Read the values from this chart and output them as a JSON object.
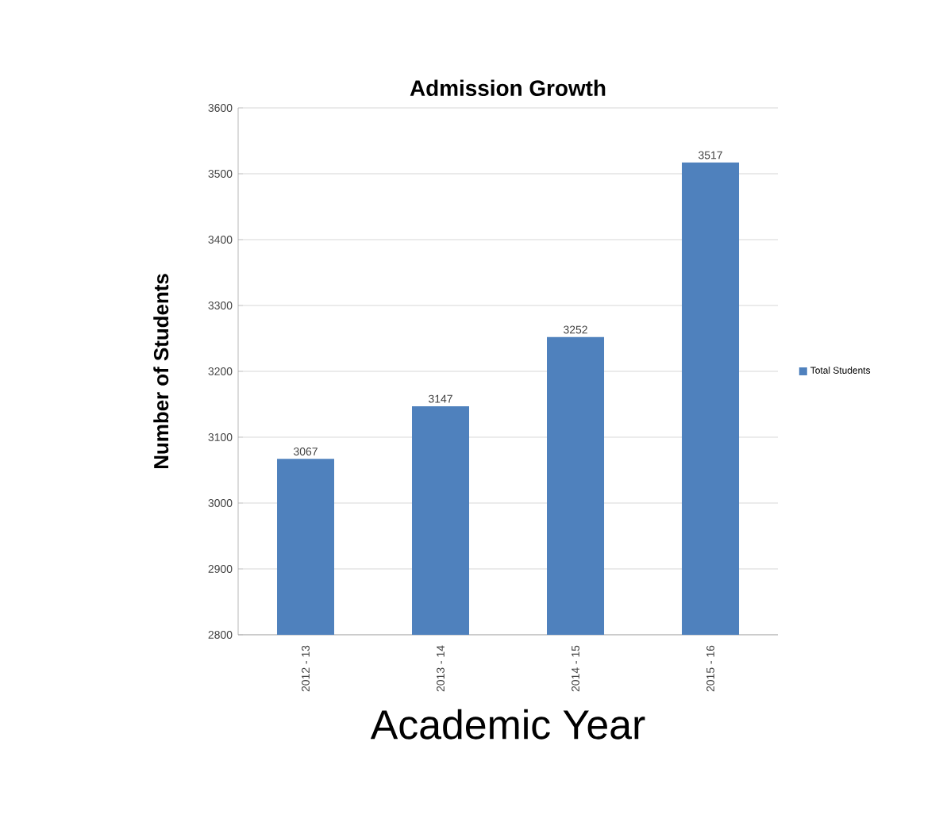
{
  "chart_data": {
    "type": "bar",
    "title": "Admission Growth",
    "xlabel": "Academic Year",
    "ylabel": "Number of Students",
    "categories": [
      "2012 - 13",
      "2013 - 14",
      "2014 - 15",
      "2015 - 16"
    ],
    "series": [
      {
        "name": "Total Students",
        "color": "#4f81bd",
        "values": [
          3067,
          3147,
          3252,
          3517
        ]
      }
    ],
    "ylim": [
      2800,
      3600
    ],
    "yticks": [
      2800,
      2900,
      3000,
      3100,
      3200,
      3300,
      3400,
      3500,
      3600
    ],
    "grid": "y",
    "legend": "right",
    "data_labels": true
  }
}
